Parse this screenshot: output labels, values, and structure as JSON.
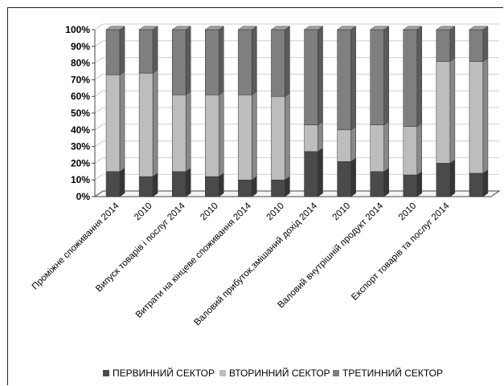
{
  "chart_data": {
    "type": "bar",
    "stacked": true,
    "percent": true,
    "three_d": true,
    "title": "",
    "xlabel": "",
    "ylabel": "",
    "ylim": [
      0,
      100
    ],
    "yticks": [
      "0%",
      "10%",
      "20%",
      "30%",
      "40%",
      "50%",
      "60%",
      "70%",
      "80%",
      "90%",
      "100%"
    ],
    "grid": true,
    "legend_position": "bottom",
    "categories": [
      "Проміжне споживання 2014",
      "2010",
      "Випуск товарів і послуг 2014",
      "2010",
      "Витрати на кінцеве споживання 2014",
      "2010",
      "Валовий прибуток,змішаний дохід 2014",
      "2010",
      "Валовий внутрішній продукт 2014",
      "2010",
      "Експорт товарів та послуг 2014",
      ""
    ],
    "series": [
      {
        "name": "ПЕРВИННИЙ СЕКТОР",
        "color": "#4a4a4a",
        "values": [
          15,
          12,
          15,
          12,
          10,
          10,
          27,
          21,
          15,
          13,
          20,
          14
        ]
      },
      {
        "name": "ВТОРИННИЙ СЕКТОР",
        "color": "#bdbdbd",
        "values": [
          58,
          62,
          46,
          49,
          51,
          50,
          16,
          19,
          28,
          29,
          61,
          67
        ]
      },
      {
        "name": "ТРЕТИННИЙ СЕКТОР",
        "color": "#7f7f7f",
        "values": [
          27,
          26,
          39,
          39,
          39,
          40,
          57,
          60,
          57,
          58,
          19,
          19
        ]
      }
    ]
  }
}
